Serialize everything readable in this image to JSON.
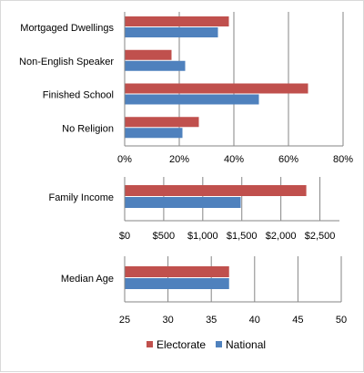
{
  "chart_data": [
    {
      "type": "bar",
      "orientation": "horizontal",
      "categories": [
        "Mortgaged Dwellings",
        "Non-English Speaker",
        "Finished School",
        "No Religion"
      ],
      "series": [
        {
          "name": "Electorate",
          "values": [
            38,
            17,
            67,
            27
          ]
        },
        {
          "name": "National",
          "values": [
            34,
            22,
            49,
            21
          ]
        }
      ],
      "xlim": [
        0,
        80
      ],
      "ticks": [
        0,
        20,
        40,
        60,
        80
      ],
      "tick_labels": [
        "0%",
        "20%",
        "40%",
        "60%",
        "80%"
      ],
      "grid": true
    },
    {
      "type": "bar",
      "orientation": "horizontal",
      "categories": [
        "Family Income"
      ],
      "series": [
        {
          "name": "Electorate",
          "values": [
            2320
          ]
        },
        {
          "name": "National",
          "values": [
            1480
          ]
        }
      ],
      "xlim": [
        0,
        2750
      ],
      "ticks": [
        0,
        500,
        1000,
        1500,
        2000,
        2500
      ],
      "tick_labels": [
        "$0",
        "$500",
        "$1,000",
        "$1,500",
        "$2,000",
        "$2,500"
      ],
      "grid": true
    },
    {
      "type": "bar",
      "orientation": "horizontal",
      "categories": [
        "Median Age"
      ],
      "series": [
        {
          "name": "Electorate",
          "values": [
            37
          ]
        },
        {
          "name": "National",
          "values": [
            37
          ]
        }
      ],
      "xlim": [
        25,
        50
      ],
      "ticks": [
        25,
        30,
        35,
        40,
        45,
        50
      ],
      "tick_labels": [
        "25",
        "30",
        "35",
        "40",
        "45",
        "50"
      ],
      "grid": true
    }
  ],
  "legend": {
    "position": "bottom",
    "items": [
      {
        "label": "Electorate",
        "color": "#c0504d"
      },
      {
        "label": "National",
        "color": "#4f81bd"
      }
    ]
  }
}
